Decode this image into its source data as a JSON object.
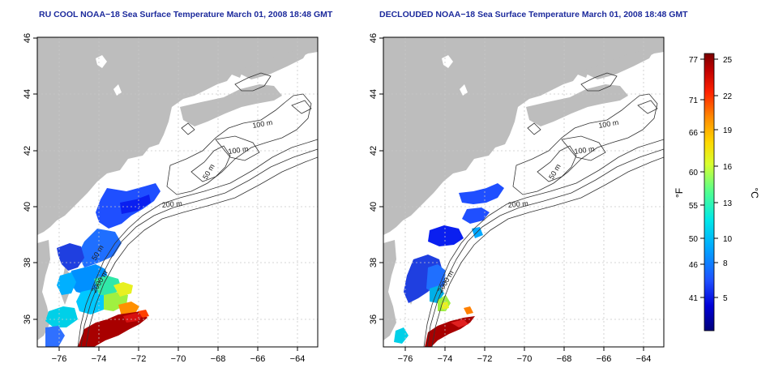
{
  "panels": [
    {
      "title": "RU COOL NOAA−18 Sea Surface Temperature March 01, 2008 18:48 GMT",
      "x_ticks": [
        "−76",
        "−74",
        "−72",
        "−70",
        "−68",
        "−66",
        "−64"
      ],
      "y_ticks": [
        "36",
        "38",
        "40",
        "42",
        "44",
        "46"
      ],
      "contour_labels": [
        "100 m",
        "100 m",
        "50 m",
        "200 m",
        "50 m",
        "2000 m"
      ]
    },
    {
      "title": "DECLOUDED NOAA−18 Sea Surface Temperature March 01, 2008 18:48 GMT",
      "x_ticks": [
        "−76",
        "−74",
        "−72",
        "−70",
        "−68",
        "−66",
        "−64"
      ],
      "y_ticks": [
        "36",
        "38",
        "40",
        "42",
        "44",
        "46"
      ],
      "contour_labels": [
        "100 m",
        "100 m",
        "50 m",
        "200 m",
        "2000 m"
      ]
    }
  ],
  "colorbar": {
    "unit_left": "°F",
    "unit_right": "°C",
    "f_ticks": [
      "77",
      "71",
      "66",
      "60",
      "55",
      "50",
      "46",
      "41"
    ],
    "c_ticks": [
      "25",
      "22",
      "19",
      "16",
      "13",
      "10",
      "8",
      "5"
    ],
    "colors": [
      "#00007a",
      "#0000d8",
      "#1f4fff",
      "#00a8ff",
      "#00e8e8",
      "#50ff90",
      "#d8ff30",
      "#ffd800",
      "#ff8a00",
      "#ff2200",
      "#c00000",
      "#7a0000"
    ]
  },
  "map": {
    "land_color": "#bdbdbd",
    "contour_color": "#333333",
    "grid_color": "#c8c8c8"
  }
}
